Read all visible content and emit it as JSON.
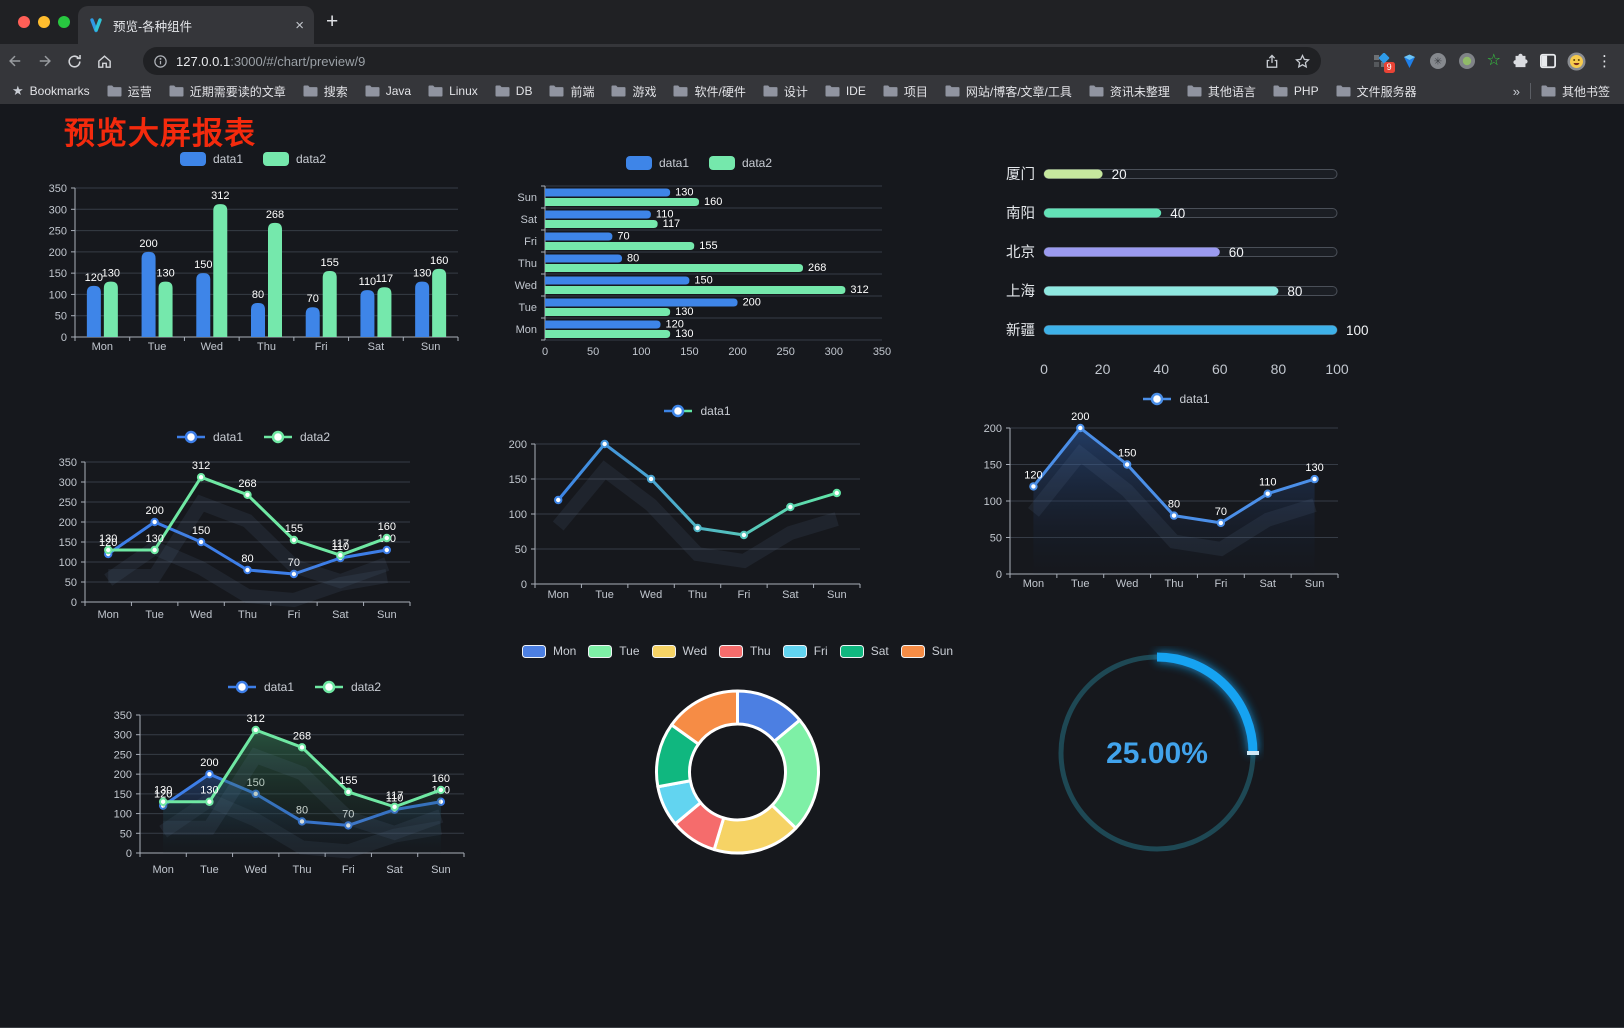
{
  "window": {
    "tab_title": "预览-各种组件",
    "new_tab_glyph": "+",
    "close_glyph": "×",
    "url_host": "127.0.0.1",
    "url_rest": ":3000/#/chart/preview/9",
    "bookmarks_label": "Bookmarks",
    "bookmark_folders": [
      "运营",
      "近期需要读的文章",
      "搜索",
      "Java",
      "Linux",
      "DB",
      "前端",
      "游戏",
      "软件/硬件",
      "设计",
      "IDE",
      "项目",
      "网站/博客/文章/工具",
      "资讯未整理",
      "其他语言",
      "PHP",
      "文件服务器"
    ],
    "overflow_chevron": "»",
    "other_bookmarks_label": "其他书签",
    "extension_badge_count": "9"
  },
  "page": {
    "title": "预览大屏报表"
  },
  "chart_data": {
    "bar_vertical": {
      "type": "bar",
      "categories": [
        "Mon",
        "Tue",
        "Wed",
        "Thu",
        "Fri",
        "Sat",
        "Sun"
      ],
      "series": [
        {
          "name": "data1",
          "color": "#3E85E8",
          "values": [
            120,
            200,
            150,
            80,
            70,
            110,
            130
          ]
        },
        {
          "name": "data2",
          "color": "#75E8AC",
          "values": [
            130,
            130,
            312,
            268,
            155,
            117,
            160
          ]
        }
      ],
      "ylim": [
        0,
        350
      ],
      "ystep": 50,
      "grid": true,
      "legend_position": "top"
    },
    "bar_horizontal": {
      "type": "bar",
      "orientation": "horizontal",
      "categories_top_to_bottom": [
        "Sun",
        "Sat",
        "Fri",
        "Thu",
        "Wed",
        "Tue",
        "Mon"
      ],
      "series": [
        {
          "name": "data1",
          "color": "#3E85E8",
          "values_mon_to_sun": [
            120,
            200,
            150,
            80,
            70,
            110,
            130
          ]
        },
        {
          "name": "data2",
          "color": "#75E8AC",
          "values_mon_to_sun": [
            130,
            130,
            312,
            268,
            155,
            117,
            160
          ]
        }
      ],
      "xlim": [
        0,
        350
      ],
      "xstep": 50,
      "grid": true,
      "legend_position": "top"
    },
    "progress_bars": {
      "type": "bar",
      "subtype": "progress",
      "items": [
        {
          "label": "厦门",
          "value": 20,
          "color": "#C6E89E"
        },
        {
          "label": "南阳",
          "value": 40,
          "color": "#63E2B7"
        },
        {
          "label": "北京",
          "value": 60,
          "color": "#9B9AEF"
        },
        {
          "label": "上海",
          "value": 80,
          "color": "#8FE8E0"
        },
        {
          "label": "新疆",
          "value": 100,
          "color": "#3EB1E8"
        }
      ],
      "xticks": [
        0,
        20,
        40,
        60,
        80,
        100
      ],
      "xlim": [
        0,
        100
      ]
    },
    "line_dual": {
      "type": "line",
      "categories": [
        "Mon",
        "Tue",
        "Wed",
        "Thu",
        "Fri",
        "Sat",
        "Sun"
      ],
      "series": [
        {
          "name": "data1",
          "color": "#3D7EE8",
          "values": [
            120,
            200,
            150,
            80,
            70,
            110,
            130
          ]
        },
        {
          "name": "data2",
          "color": "#6FE8A3",
          "values": [
            130,
            130,
            312,
            268,
            155,
            117,
            160
          ]
        }
      ],
      "ylim": [
        0,
        350
      ],
      "ystep": 50,
      "labels": true,
      "legend_position": "top"
    },
    "line_gradient": {
      "type": "line",
      "categories": [
        "Mon",
        "Tue",
        "Wed",
        "Thu",
        "Fri",
        "Sat",
        "Sun"
      ],
      "series": [
        {
          "name": "data1",
          "color_gradient": [
            "#3D84E6",
            "#62E6A6"
          ],
          "values": [
            120,
            200,
            150,
            80,
            70,
            110,
            130
          ]
        }
      ],
      "ylim": [
        0,
        200
      ],
      "ystep": 50,
      "labels": false,
      "legend_position": "top"
    },
    "line_area_blue": {
      "type": "line",
      "categories": [
        "Mon",
        "Tue",
        "Wed",
        "Thu",
        "Fri",
        "Sat",
        "Sun"
      ],
      "series": [
        {
          "name": "data1",
          "color": "#4B8FE8",
          "area": [
            "rgba(45,90,160,0.55)",
            "rgba(20,30,50,0.04)"
          ],
          "values": [
            120,
            200,
            150,
            80,
            70,
            110,
            130
          ]
        }
      ],
      "ylim": [
        0,
        200
      ],
      "ystep": 50,
      "labels": true,
      "legend_position": "top"
    },
    "line_area_dual": {
      "type": "line",
      "categories": [
        "Mon",
        "Tue",
        "Wed",
        "Thu",
        "Fri",
        "Sat",
        "Sun"
      ],
      "series": [
        {
          "name": "data1",
          "color": "#3D7EE8",
          "area": [
            "rgba(45,90,160,0.5)",
            "rgba(20,30,50,0.05)"
          ],
          "values": [
            120,
            200,
            150,
            80,
            70,
            110,
            130
          ]
        },
        {
          "name": "data2",
          "color": "#6FE8A3",
          "area": [
            "rgba(55,130,90,0.55)",
            "rgba(20,40,30,0.05)"
          ],
          "values": [
            130,
            130,
            312,
            268,
            155,
            117,
            160
          ]
        }
      ],
      "ylim": [
        0,
        350
      ],
      "ystep": 50,
      "labels": true,
      "legend_position": "top"
    },
    "donut": {
      "type": "pie",
      "inner_radius_ratio": 0.59,
      "items": [
        {
          "name": "Mon",
          "value": 120,
          "color": "#4C7FE2"
        },
        {
          "name": "Tue",
          "value": 200,
          "color": "#7EF0A6"
        },
        {
          "name": "Wed",
          "value": 150,
          "color": "#F6D365"
        },
        {
          "name": "Thu",
          "value": 80,
          "color": "#F56C6C"
        },
        {
          "name": "Fri",
          "value": 70,
          "color": "#62D4F0"
        },
        {
          "name": "Sat",
          "value": 110,
          "color": "#10B77F"
        },
        {
          "name": "Sun",
          "value": 130,
          "color": "#F68C45"
        }
      ],
      "legend_position": "top"
    },
    "gauge": {
      "type": "gauge",
      "value": 25,
      "label": "25.00%",
      "progress_color": "#16A3F2",
      "track_color": "#1E4854",
      "text_color": "#41A3EC"
    }
  }
}
